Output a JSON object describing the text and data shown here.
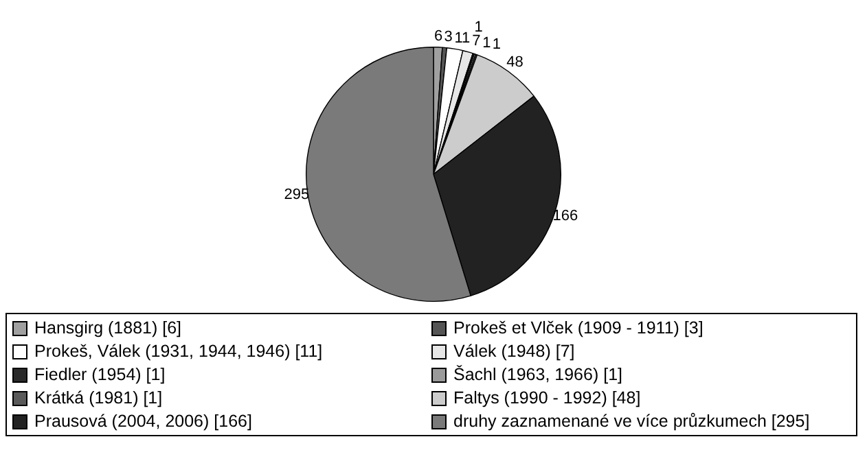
{
  "chart_data": {
    "type": "pie",
    "categories": [
      "Hansgirg (1881) [6]",
      "Prokeš et Vlček (1909 - 1911) [3]",
      "Prokeš, Válek (1931, 1944, 1946) [11]",
      "Válek (1948) [7]",
      "Fiedler (1954) [1]",
      "Šachl (1963, 1966) [1]",
      "Krátká (1981) [1]",
      "Faltys (1990 - 1992) [48]",
      "Prausová (2004, 2006) [166]",
      "druhy zaznamenané ve více průzkumech [295]"
    ],
    "values": [
      6,
      3,
      11,
      7,
      1,
      1,
      1,
      48,
      166,
      295
    ],
    "colors": [
      "#a0a0a0",
      "#555555",
      "#ffffff",
      "#e6e6e6",
      "#2a2a2a",
      "#9a9a9a",
      "#5a5a5a",
      "#cccccc",
      "#222222",
      "#7a7a7a"
    ],
    "data_labels": true,
    "legend": "bottom"
  }
}
